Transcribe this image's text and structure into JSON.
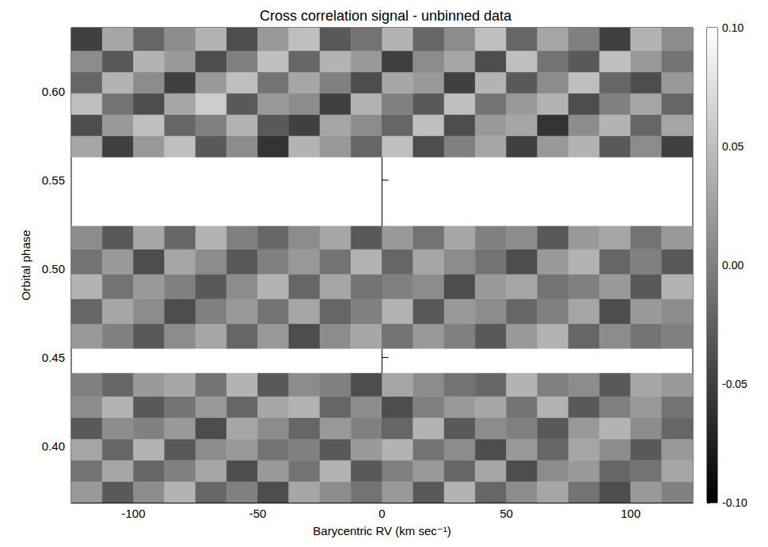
{
  "chart_data": {
    "type": "heatmap",
    "title": "Cross correlation signal - unbinned data",
    "x_label": "Barycentric RV (km sec⁻¹)",
    "y_label": "Orbital phase",
    "xlim": [
      -125,
      125
    ],
    "xticks": [
      -100,
      -50,
      0,
      50,
      100
    ],
    "ylim": [
      0.368,
      0.636
    ],
    "yticks": [
      {
        "value": 0.4,
        "label": "0.40"
      },
      {
        "value": 0.45,
        "label": "0.45"
      },
      {
        "value": 0.5,
        "label": "0.50"
      },
      {
        "value": 0.55,
        "label": "0.55"
      },
      {
        "value": 0.6,
        "label": "0.60"
      }
    ],
    "x_edges": [
      -125,
      -112.5,
      -100,
      -87.5,
      -75,
      -62.5,
      -50,
      -37.5,
      -25,
      -12.5,
      0,
      12.5,
      25,
      37.5,
      50,
      62.5,
      75,
      87.5,
      100,
      112.5,
      125
    ],
    "rows": [
      {
        "phase": [
          0.368,
          0.38
        ],
        "values": [
          0.02,
          -0.03,
          0.01,
          0.04,
          -0.02,
          0.0,
          -0.04,
          0.03,
          0.01,
          -0.01,
          0.02,
          -0.03,
          0.04,
          -0.02,
          0.01,
          0.03,
          -0.01,
          -0.04,
          0.02,
          0.0
        ]
      },
      {
        "phase": [
          0.38,
          0.392
        ],
        "values": [
          -0.01,
          0.03,
          -0.02,
          0.0,
          0.03,
          -0.04,
          0.02,
          -0.01,
          0.04,
          -0.03,
          0.0,
          0.02,
          -0.02,
          0.03,
          -0.04,
          0.01,
          0.02,
          -0.02,
          -0.01,
          0.03
        ]
      },
      {
        "phase": [
          0.392,
          0.404
        ],
        "values": [
          0.03,
          -0.02,
          0.04,
          -0.03,
          0.01,
          0.02,
          -0.01,
          0.0,
          -0.03,
          0.02,
          0.04,
          -0.01,
          0.01,
          -0.04,
          0.02,
          -0.02,
          0.03,
          0.01,
          -0.03,
          0.02
        ]
      },
      {
        "phase": [
          0.404,
          0.416
        ],
        "values": [
          -0.03,
          0.01,
          0.0,
          0.02,
          -0.04,
          0.03,
          0.01,
          -0.02,
          0.02,
          0.0,
          -0.02,
          0.04,
          -0.03,
          0.01,
          0.0,
          -0.03,
          0.02,
          0.04,
          0.01,
          -0.02
        ]
      },
      {
        "phase": [
          0.416,
          0.428
        ],
        "values": [
          0.01,
          0.04,
          -0.03,
          -0.01,
          0.02,
          -0.02,
          0.03,
          0.04,
          -0.02,
          0.01,
          -0.04,
          0.0,
          0.02,
          0.03,
          -0.01,
          0.04,
          -0.03,
          0.0,
          0.02,
          -0.01
        ]
      },
      {
        "phase": [
          0.428,
          0.441
        ],
        "values": [
          0.0,
          -0.02,
          0.02,
          0.03,
          -0.01,
          0.04,
          -0.03,
          0.01,
          0.0,
          -0.04,
          0.03,
          0.01,
          -0.01,
          -0.02,
          0.04,
          0.0,
          0.01,
          -0.03,
          0.03,
          0.02
        ]
      },
      {
        "phase": [
          0.455,
          0.469
        ],
        "values": [
          0.02,
          0.0,
          -0.03,
          0.01,
          0.03,
          -0.02,
          0.02,
          -0.04,
          0.01,
          0.03,
          -0.01,
          0.02,
          0.0,
          -0.03,
          0.02,
          0.04,
          -0.02,
          0.01,
          -0.01,
          0.0
        ]
      },
      {
        "phase": [
          0.469,
          0.483
        ],
        "values": [
          -0.02,
          0.03,
          0.01,
          -0.04,
          0.0,
          0.02,
          -0.01,
          0.03,
          -0.02,
          0.0,
          0.04,
          -0.03,
          0.02,
          0.01,
          -0.02,
          0.0,
          0.03,
          -0.04,
          0.02,
          0.01
        ]
      },
      {
        "phase": [
          0.483,
          0.497
        ],
        "values": [
          0.04,
          -0.01,
          0.02,
          0.0,
          -0.03,
          0.01,
          0.04,
          -0.02,
          0.03,
          -0.01,
          0.0,
          0.01,
          -0.04,
          0.02,
          0.03,
          -0.01,
          0.0,
          0.02,
          -0.03,
          0.04
        ]
      },
      {
        "phase": [
          0.497,
          0.511
        ],
        "values": [
          -0.01,
          0.02,
          -0.04,
          0.03,
          0.01,
          -0.03,
          0.0,
          0.02,
          -0.01,
          0.04,
          -0.02,
          0.03,
          0.01,
          -0.01,
          -0.04,
          0.02,
          0.04,
          -0.02,
          0.0,
          -0.03
        ]
      },
      {
        "phase": [
          0.511,
          0.524
        ],
        "values": [
          0.01,
          -0.03,
          0.03,
          -0.02,
          0.04,
          0.0,
          -0.02,
          0.01,
          0.03,
          -0.03,
          0.02,
          -0.01,
          0.03,
          0.0,
          0.01,
          -0.03,
          0.02,
          0.03,
          -0.01,
          0.02
        ]
      },
      {
        "phase": [
          0.563,
          0.575
        ],
        "values": [
          0.03,
          -0.05,
          0.02,
          0.05,
          -0.03,
          0.01,
          -0.06,
          0.04,
          0.02,
          -0.02,
          0.05,
          -0.04,
          0.0,
          0.03,
          -0.05,
          0.02,
          0.04,
          -0.03,
          0.01,
          -0.05
        ]
      },
      {
        "phase": [
          0.575,
          0.587
        ],
        "values": [
          -0.04,
          0.02,
          0.05,
          -0.02,
          0.0,
          0.04,
          -0.03,
          -0.05,
          0.03,
          0.01,
          -0.02,
          0.05,
          -0.04,
          0.02,
          0.03,
          -0.06,
          0.01,
          0.04,
          -0.02,
          0.03
        ]
      },
      {
        "phase": [
          0.587,
          0.599
        ],
        "values": [
          0.05,
          -0.01,
          -0.04,
          0.03,
          0.06,
          -0.03,
          0.02,
          0.01,
          -0.05,
          0.04,
          0.0,
          -0.03,
          0.05,
          -0.01,
          0.02,
          0.04,
          -0.04,
          0.0,
          0.03,
          -0.02
        ]
      },
      {
        "phase": [
          0.599,
          0.611
        ],
        "values": [
          -0.02,
          0.04,
          0.01,
          -0.05,
          0.02,
          0.05,
          -0.01,
          0.03,
          0.0,
          -0.04,
          0.03,
          0.02,
          -0.05,
          0.04,
          -0.03,
          0.01,
          0.05,
          -0.02,
          -0.04,
          0.02
        ]
      },
      {
        "phase": [
          0.611,
          0.623
        ],
        "values": [
          0.01,
          -0.03,
          0.04,
          0.02,
          -0.04,
          0.0,
          0.05,
          -0.02,
          0.04,
          0.02,
          -0.05,
          0.01,
          0.03,
          -0.04,
          0.05,
          -0.01,
          -0.03,
          0.05,
          0.02,
          -0.01
        ]
      },
      {
        "phase": [
          0.623,
          0.636
        ],
        "values": [
          -0.05,
          0.03,
          -0.02,
          0.01,
          0.04,
          -0.04,
          0.02,
          0.05,
          -0.03,
          -0.01,
          0.04,
          -0.02,
          0.01,
          0.05,
          -0.02,
          0.03,
          0.0,
          -0.05,
          0.04,
          0.01
        ]
      }
    ],
    "colorbar": {
      "range": [
        -0.1,
        0.1
      ],
      "ticks": [
        {
          "value": -0.1,
          "label": "-0.10"
        },
        {
          "value": -0.05,
          "label": "-0.05"
        },
        {
          "value": 0.0,
          "label": "0.00"
        },
        {
          "value": 0.05,
          "label": "0.05"
        },
        {
          "value": 0.1,
          "label": "0.10"
        }
      ]
    }
  }
}
